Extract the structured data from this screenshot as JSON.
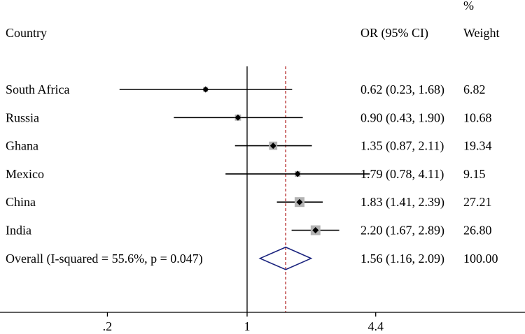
{
  "chart_data": {
    "type": "forest",
    "columns": {
      "study_header": "Country",
      "effect_header": "OR (95% CI)",
      "weight_header_line1": "%",
      "weight_header_line2": "Weight"
    },
    "studies": [
      {
        "label": "South Africa",
        "or": 0.62,
        "lower": 0.23,
        "upper": 1.68,
        "weight": 6.82,
        "or_text": "0.62 (0.23, 1.68)",
        "weight_text": "6.82"
      },
      {
        "label": "Russia",
        "or": 0.9,
        "lower": 0.43,
        "upper": 1.9,
        "weight": 10.68,
        "or_text": "0.90 (0.43, 1.90)",
        "weight_text": "10.68"
      },
      {
        "label": "Ghana",
        "or": 1.35,
        "lower": 0.87,
        "upper": 2.11,
        "weight": 19.34,
        "or_text": "1.35 (0.87, 2.11)",
        "weight_text": "19.34"
      },
      {
        "label": "Mexico",
        "or": 1.79,
        "lower": 0.78,
        "upper": 4.11,
        "weight": 9.15,
        "or_text": "1.79 (0.78, 4.11)",
        "weight_text": "9.15"
      },
      {
        "label": "China",
        "or": 1.83,
        "lower": 1.41,
        "upper": 2.39,
        "weight": 27.21,
        "or_text": "1.83 (1.41, 2.39)",
        "weight_text": "27.21"
      },
      {
        "label": "India",
        "or": 2.2,
        "lower": 1.67,
        "upper": 2.89,
        "weight": 26.8,
        "or_text": "2.20 (1.67, 2.89)",
        "weight_text": "26.80"
      }
    ],
    "overall": {
      "label": "Overall  (I-squared = 55.6%, p = 0.047)",
      "or": 1.56,
      "lower": 1.16,
      "upper": 2.09,
      "weight": 100.0,
      "or_text": "1.56 (1.16, 2.09)",
      "weight_text": "100.00"
    },
    "x_axis": {
      "scale": "log",
      "ticks": [
        0.2,
        1,
        4.4
      ],
      "tick_labels": [
        ".2",
        "1",
        "4.4"
      ],
      "null_line": 1
    },
    "colors": {
      "text": "#000000",
      "weight_box": "#b3b3b3",
      "overall_diamond": "#1a237e",
      "overall_line": "#b22222"
    }
  }
}
